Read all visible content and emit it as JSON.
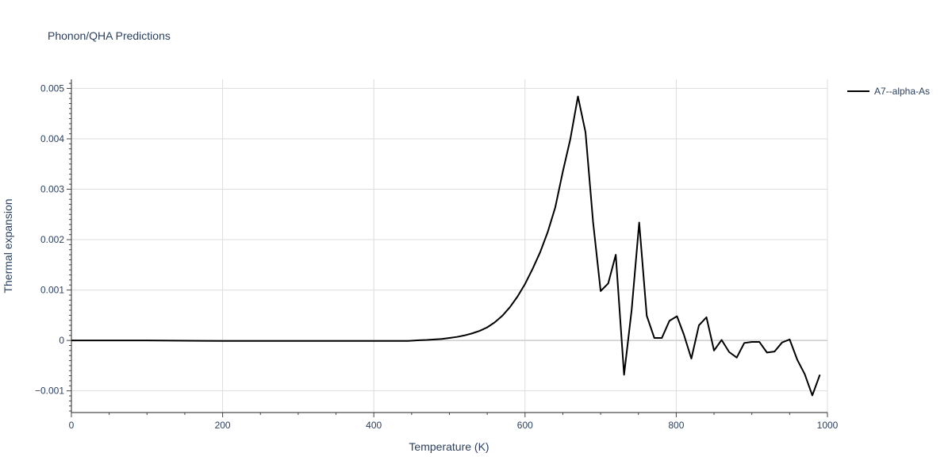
{
  "chart_data": {
    "type": "line",
    "title": "Phonon/QHA Predictions",
    "xlabel": "Temperature (K)",
    "ylabel": "Thermal expansion",
    "xlim": [
      0,
      1000
    ],
    "ylim": [
      -0.00143,
      0.00518
    ],
    "grid": true,
    "legend_placement": "top-right",
    "x_ticks": [
      0,
      200,
      400,
      600,
      800,
      1000
    ],
    "x_tick_labels": [
      "0",
      "200",
      "400",
      "600",
      "800",
      "1000"
    ],
    "y_ticks": [
      -0.001,
      0,
      0.001,
      0.002,
      0.003,
      0.004,
      0.005
    ],
    "y_tick_labels": [
      "−0.001",
      "0",
      "0.001",
      "0.002",
      "0.003",
      "0.004",
      "0.005"
    ],
    "series": [
      {
        "name": "A7--alpha-As",
        "color": "#000000",
        "x": [
          0,
          100,
          200,
          300,
          400,
          445,
          460,
          470,
          480,
          490,
          500,
          510,
          520,
          530,
          540,
          550,
          560,
          570,
          580,
          590,
          600,
          610,
          620,
          630,
          640,
          650,
          660,
          670,
          680,
          690,
          700,
          710,
          720,
          731,
          741,
          751,
          761,
          771,
          781,
          791,
          801,
          810,
          820,
          830,
          840,
          850,
          860,
          870,
          880,
          890,
          900,
          910,
          920,
          930,
          940,
          950,
          960,
          970,
          980,
          990
        ],
        "y": [
          0,
          0,
          -1e-05,
          -1e-05,
          -1e-05,
          -1e-05,
          5e-06,
          1e-05,
          2e-05,
          3e-05,
          5e-05,
          7e-05,
          0.0001,
          0.00014,
          0.00019,
          0.00026,
          0.00036,
          0.00049,
          0.00066,
          0.00087,
          0.00112,
          0.00142,
          0.00175,
          0.00215,
          0.00264,
          0.00335,
          0.004,
          0.00484,
          0.00413,
          0.00235,
          0.00098,
          0.00113,
          0.0017,
          -0.00068,
          0.0006,
          0.00234,
          0.00049,
          5e-05,
          5e-05,
          0.00039,
          0.00048,
          0.00012,
          -0.00036,
          0.0003,
          0.00046,
          -0.0002,
          1e-05,
          -0.00023,
          -0.00034,
          -5e-05,
          -3e-05,
          -3e-05,
          -0.00024,
          -0.00022,
          -4e-05,
          2e-05,
          -0.00038,
          -0.00067,
          -0.00109,
          -0.00068
        ]
      }
    ]
  }
}
